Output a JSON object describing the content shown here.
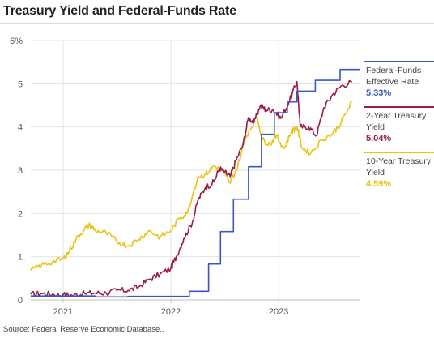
{
  "title": "Treasury Yield and Federal-Funds Rate",
  "source": "Source: Federal Reserve Economic Database..",
  "colors": {
    "fedfunds": "#3b57c4",
    "twoyear": "#9a1b45",
    "tenyear": "#e8c41a",
    "grid": "#e3e3e3",
    "axis": "#bdbdbd"
  },
  "chart_data": {
    "type": "line",
    "title": "Treasury Yield and Federal-Funds Rate",
    "x_unit": "decimal year",
    "xlim": [
      2020.7,
      2023.75
    ],
    "ylim": [
      0,
      6
    ],
    "y_ticks": [
      {
        "value": 0,
        "label": "0"
      },
      {
        "value": 1,
        "label": "1"
      },
      {
        "value": 2,
        "label": "2"
      },
      {
        "value": 3,
        "label": "3"
      },
      {
        "value": 4,
        "label": "4"
      },
      {
        "value": 5,
        "label": "5"
      },
      {
        "value": 6,
        "label": "6%"
      }
    ],
    "x_ticks": [
      {
        "value": 2021.0,
        "label": "2021"
      },
      {
        "value": 2022.0,
        "label": "2022"
      },
      {
        "value": 2023.0,
        "label": "2023"
      }
    ],
    "grid": true,
    "legend_position": "right",
    "series": [
      {
        "name": "Federal-Funds Effective Rate",
        "name_lines": [
          "Federal-Funds",
          "Effective Rate"
        ],
        "last_label": "5.33%",
        "color_key": "fedfunds",
        "step": true,
        "points": [
          [
            2020.7,
            0.09
          ],
          [
            2021.0,
            0.09
          ],
          [
            2021.3,
            0.07
          ],
          [
            2021.6,
            0.08
          ],
          [
            2022.0,
            0.08
          ],
          [
            2022.17,
            0.2
          ],
          [
            2022.35,
            0.83
          ],
          [
            2022.46,
            1.58
          ],
          [
            2022.58,
            2.33
          ],
          [
            2022.72,
            3.08
          ],
          [
            2022.84,
            3.83
          ],
          [
            2022.96,
            4.33
          ],
          [
            2023.08,
            4.58
          ],
          [
            2023.17,
            4.83
          ],
          [
            2023.34,
            5.08
          ],
          [
            2023.57,
            5.33
          ],
          [
            2023.75,
            5.33
          ]
        ]
      },
      {
        "name": "2-Year Treasury Yield",
        "name_lines": [
          "2-Year Treasury",
          "Yield"
        ],
        "last_label": "5.04%",
        "color_key": "twoyear",
        "step": false,
        "points": [
          [
            2020.7,
            0.13
          ],
          [
            2020.8,
            0.15
          ],
          [
            2020.9,
            0.13
          ],
          [
            2021.0,
            0.12
          ],
          [
            2021.1,
            0.11
          ],
          [
            2021.2,
            0.15
          ],
          [
            2021.3,
            0.16
          ],
          [
            2021.4,
            0.16
          ],
          [
            2021.5,
            0.22
          ],
          [
            2021.6,
            0.22
          ],
          [
            2021.7,
            0.3
          ],
          [
            2021.8,
            0.48
          ],
          [
            2021.9,
            0.6
          ],
          [
            2022.0,
            0.73
          ],
          [
            2022.05,
            1.0
          ],
          [
            2022.12,
            1.42
          ],
          [
            2022.2,
            1.8
          ],
          [
            2022.25,
            2.3
          ],
          [
            2022.32,
            2.6
          ],
          [
            2022.4,
            2.73
          ],
          [
            2022.45,
            3.05
          ],
          [
            2022.5,
            2.95
          ],
          [
            2022.55,
            2.85
          ],
          [
            2022.6,
            3.2
          ],
          [
            2022.67,
            3.6
          ],
          [
            2022.72,
            4.22
          ],
          [
            2022.77,
            4.1
          ],
          [
            2022.83,
            4.5
          ],
          [
            2022.88,
            4.4
          ],
          [
            2022.95,
            4.4
          ],
          [
            2023.02,
            4.2
          ],
          [
            2023.1,
            4.6
          ],
          [
            2023.17,
            5.05
          ],
          [
            2023.2,
            4.0
          ],
          [
            2023.28,
            4.0
          ],
          [
            2023.35,
            3.8
          ],
          [
            2023.42,
            4.45
          ],
          [
            2023.5,
            4.75
          ],
          [
            2023.58,
            4.95
          ],
          [
            2023.68,
            5.04
          ]
        ]
      },
      {
        "name": "10-Year Treasury Yield",
        "name_lines": [
          "10-Year Treasury",
          "Yield"
        ],
        "last_label": "4.59%",
        "color_key": "tenyear",
        "step": false,
        "points": [
          [
            2020.7,
            0.68
          ],
          [
            2020.8,
            0.8
          ],
          [
            2020.9,
            0.88
          ],
          [
            2021.0,
            0.95
          ],
          [
            2021.05,
            1.1
          ],
          [
            2021.12,
            1.4
          ],
          [
            2021.2,
            1.65
          ],
          [
            2021.25,
            1.73
          ],
          [
            2021.3,
            1.6
          ],
          [
            2021.4,
            1.55
          ],
          [
            2021.5,
            1.35
          ],
          [
            2021.6,
            1.25
          ],
          [
            2021.7,
            1.4
          ],
          [
            2021.8,
            1.6
          ],
          [
            2021.9,
            1.45
          ],
          [
            2022.0,
            1.6
          ],
          [
            2022.08,
            1.9
          ],
          [
            2022.15,
            2.0
          ],
          [
            2022.25,
            2.85
          ],
          [
            2022.32,
            2.9
          ],
          [
            2022.4,
            3.1
          ],
          [
            2022.47,
            3.0
          ],
          [
            2022.55,
            2.7
          ],
          [
            2022.62,
            3.1
          ],
          [
            2022.7,
            3.8
          ],
          [
            2022.8,
            4.24
          ],
          [
            2022.85,
            3.7
          ],
          [
            2022.92,
            3.6
          ],
          [
            2022.98,
            3.8
          ],
          [
            2023.05,
            3.5
          ],
          [
            2023.12,
            3.9
          ],
          [
            2023.17,
            4.0
          ],
          [
            2023.22,
            3.5
          ],
          [
            2023.3,
            3.4
          ],
          [
            2023.4,
            3.7
          ],
          [
            2023.5,
            3.85
          ],
          [
            2023.58,
            4.1
          ],
          [
            2023.68,
            4.59
          ]
        ]
      }
    ]
  }
}
